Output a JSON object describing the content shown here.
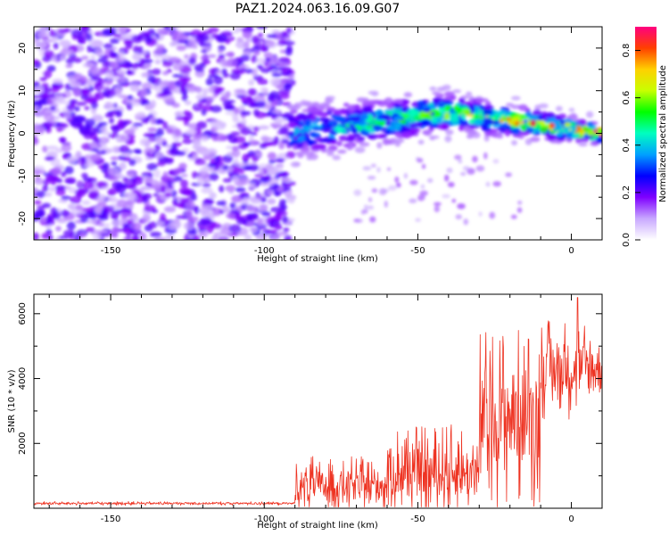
{
  "chart_data": [
    {
      "type": "heatmap",
      "title": "PAZ1.2024.063.16.09.G07",
      "xlabel": "Height of straight line (km)",
      "ylabel": "Frequency (Hz)",
      "xlim": [
        -175,
        10
      ],
      "ylim": [
        -25,
        25
      ],
      "xticks": [
        -150,
        -100,
        -50,
        0
      ],
      "yticks": [
        -20,
        -10,
        0,
        10,
        20
      ],
      "colorbar": {
        "label": "Normalized spectral amplitude",
        "range": [
          0,
          0.9
        ],
        "ticks": [
          0.0,
          0.2,
          0.4,
          0.6,
          0.8
        ],
        "colors": [
          "#ffffff",
          "#c8a8ff",
          "#7f00ff",
          "#0000ff",
          "#00a0ff",
          "#00ffc0",
          "#00ff00",
          "#c8ff00",
          "#ffd000",
          "#ff4000",
          "#ff0080"
        ]
      },
      "features": [
        {
          "x_range": [
            -175,
            -91
          ],
          "frequency_range": [
            -25,
            25
          ],
          "amplitude": 0.05,
          "description": "broadband noise"
        },
        {
          "x_range": [
            -91,
            10
          ],
          "center_frequency": [
            0,
            5,
            0
          ],
          "amplitude_max": 0.9,
          "description": "signal ridge"
        }
      ]
    },
    {
      "type": "line",
      "xlabel": "Height of straight line (km)",
      "ylabel": "SNR (10 * v/v)",
      "xlim": [
        -175,
        10
      ],
      "ylim": [
        0,
        6600
      ],
      "xticks": [
        -150,
        -100,
        -50,
        0
      ],
      "yticks": [
        2000,
        4000,
        6000
      ],
      "color": "#ee3322",
      "segments": [
        {
          "x": [
            -175,
            -90
          ],
          "snr_mean": 150,
          "snr_spread": 60
        },
        {
          "x": [
            -90,
            -60
          ],
          "snr_mean": 700,
          "snr_spread": 900
        },
        {
          "x": [
            -60,
            -30
          ],
          "snr_mean": 1100,
          "snr_spread": 1500
        },
        {
          "x": [
            -30,
            -10
          ],
          "snr_mean": 2800,
          "snr_spread": 2800
        },
        {
          "x": [
            -10,
            10
          ],
          "snr_mean": 4300,
          "snr_spread": 1600
        }
      ],
      "peak": {
        "x": 2,
        "y": 6500
      }
    }
  ]
}
